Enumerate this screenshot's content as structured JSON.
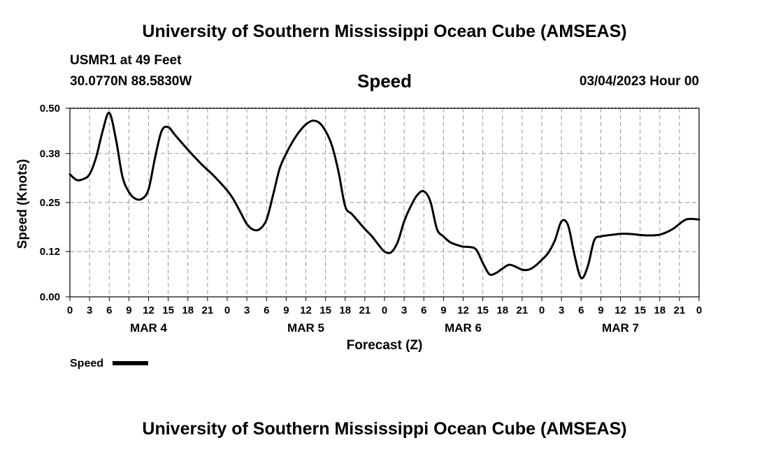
{
  "header": {
    "title": "University of Southern Mississippi Ocean Cube (AMSEAS)",
    "station": "USMR1 at 49 Feet",
    "coords": "30.0770N  88.5830W",
    "chart_name": "Speed",
    "date": "03/04/2023 Hour 00"
  },
  "footer": {
    "title": "University of Southern Mississippi Ocean Cube (AMSEAS)"
  },
  "chart_data": {
    "type": "line",
    "title": "Speed",
    "xlabel": "Forecast (Z)",
    "ylabel": "Speed (Knots)",
    "xlim": [
      0,
      96
    ],
    "ylim": [
      0,
      0.5
    ],
    "yticks": [
      0.0,
      0.12,
      0.25,
      0.38,
      0.5
    ],
    "ytick_labels": [
      "0.00",
      "0.12",
      "0.25",
      "0.38",
      "0.50"
    ],
    "xtick_labels": [
      "0",
      "3",
      "6",
      "9",
      "12",
      "15",
      "18",
      "21",
      "0",
      "3",
      "6",
      "9",
      "12",
      "15",
      "18",
      "21",
      "0",
      "3",
      "6",
      "9",
      "12",
      "15",
      "18",
      "21",
      "0",
      "3",
      "6",
      "9",
      "12",
      "15",
      "18",
      "21",
      "0"
    ],
    "day_labels": [
      {
        "label": "MAR 4",
        "hour": 12
      },
      {
        "label": "MAR 5",
        "hour": 36
      },
      {
        "label": "MAR 6",
        "hour": 60
      },
      {
        "label": "MAR 7",
        "hour": 84
      }
    ],
    "grid": true,
    "legend": [
      {
        "name": "Speed",
        "style": "thick-solid"
      }
    ],
    "series": [
      {
        "name": "Speed",
        "x": [
          0,
          1,
          2,
          3,
          4,
          5,
          6,
          7,
          8,
          9,
          10,
          11,
          12,
          13,
          14,
          15,
          16,
          18,
          20,
          22,
          24,
          25,
          26,
          27,
          28,
          29,
          30,
          31,
          32,
          33,
          34,
          35,
          36,
          37,
          38,
          39,
          40,
          41,
          42,
          43,
          44,
          45,
          46,
          47,
          48,
          49,
          50,
          51,
          52,
          53,
          54,
          55,
          56,
          57,
          58,
          59,
          60,
          61,
          62,
          63,
          64,
          65,
          66,
          67,
          68,
          69,
          70,
          71,
          72,
          73,
          74,
          75,
          76,
          77,
          78,
          79,
          80,
          81,
          82,
          83,
          84,
          85,
          86,
          87,
          88,
          90,
          92,
          94,
          96
        ],
        "values": [
          0.325,
          0.31,
          0.312,
          0.325,
          0.37,
          0.44,
          0.488,
          0.42,
          0.32,
          0.278,
          0.26,
          0.26,
          0.285,
          0.37,
          0.44,
          0.45,
          0.43,
          0.39,
          0.353,
          0.32,
          0.282,
          0.257,
          0.225,
          0.193,
          0.178,
          0.18,
          0.205,
          0.27,
          0.34,
          0.38,
          0.412,
          0.438,
          0.457,
          0.467,
          0.462,
          0.44,
          0.4,
          0.33,
          0.24,
          0.22,
          0.2,
          0.18,
          0.162,
          0.14,
          0.12,
          0.118,
          0.145,
          0.2,
          0.24,
          0.27,
          0.28,
          0.253,
          0.18,
          0.16,
          0.145,
          0.138,
          0.133,
          0.132,
          0.125,
          0.09,
          0.06,
          0.063,
          0.075,
          0.085,
          0.08,
          0.072,
          0.072,
          0.082,
          0.098,
          0.117,
          0.15,
          0.2,
          0.19,
          0.11,
          0.05,
          0.08,
          0.15,
          0.16,
          0.163,
          0.165,
          0.167,
          0.167,
          0.166,
          0.164,
          0.163,
          0.165,
          0.18,
          0.205,
          0.205
        ]
      }
    ]
  }
}
